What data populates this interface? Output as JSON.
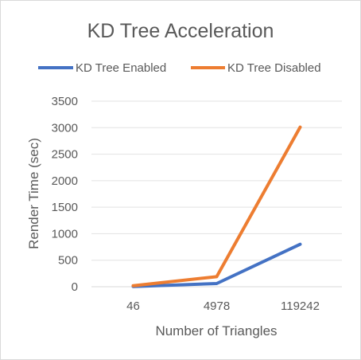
{
  "chart_data": {
    "type": "line",
    "title": "KD Tree Acceleration",
    "xlabel": "Number of Triangles",
    "ylabel": "Render Time (sec)",
    "categories": [
      "46",
      "4978",
      "119242"
    ],
    "ylim": [
      0,
      3500
    ],
    "yticks": [
      "0",
      "500",
      "1000",
      "1500",
      "2000",
      "2500",
      "3000",
      "3500"
    ],
    "grid": true,
    "legend_position": "top",
    "series": [
      {
        "name": "KD Tree Enabled",
        "values": [
          5,
          60,
          800
        ],
        "color": "#4472c4"
      },
      {
        "name": "KD Tree Disabled",
        "values": [
          20,
          190,
          3010
        ],
        "color": "#ed7d31"
      }
    ]
  }
}
